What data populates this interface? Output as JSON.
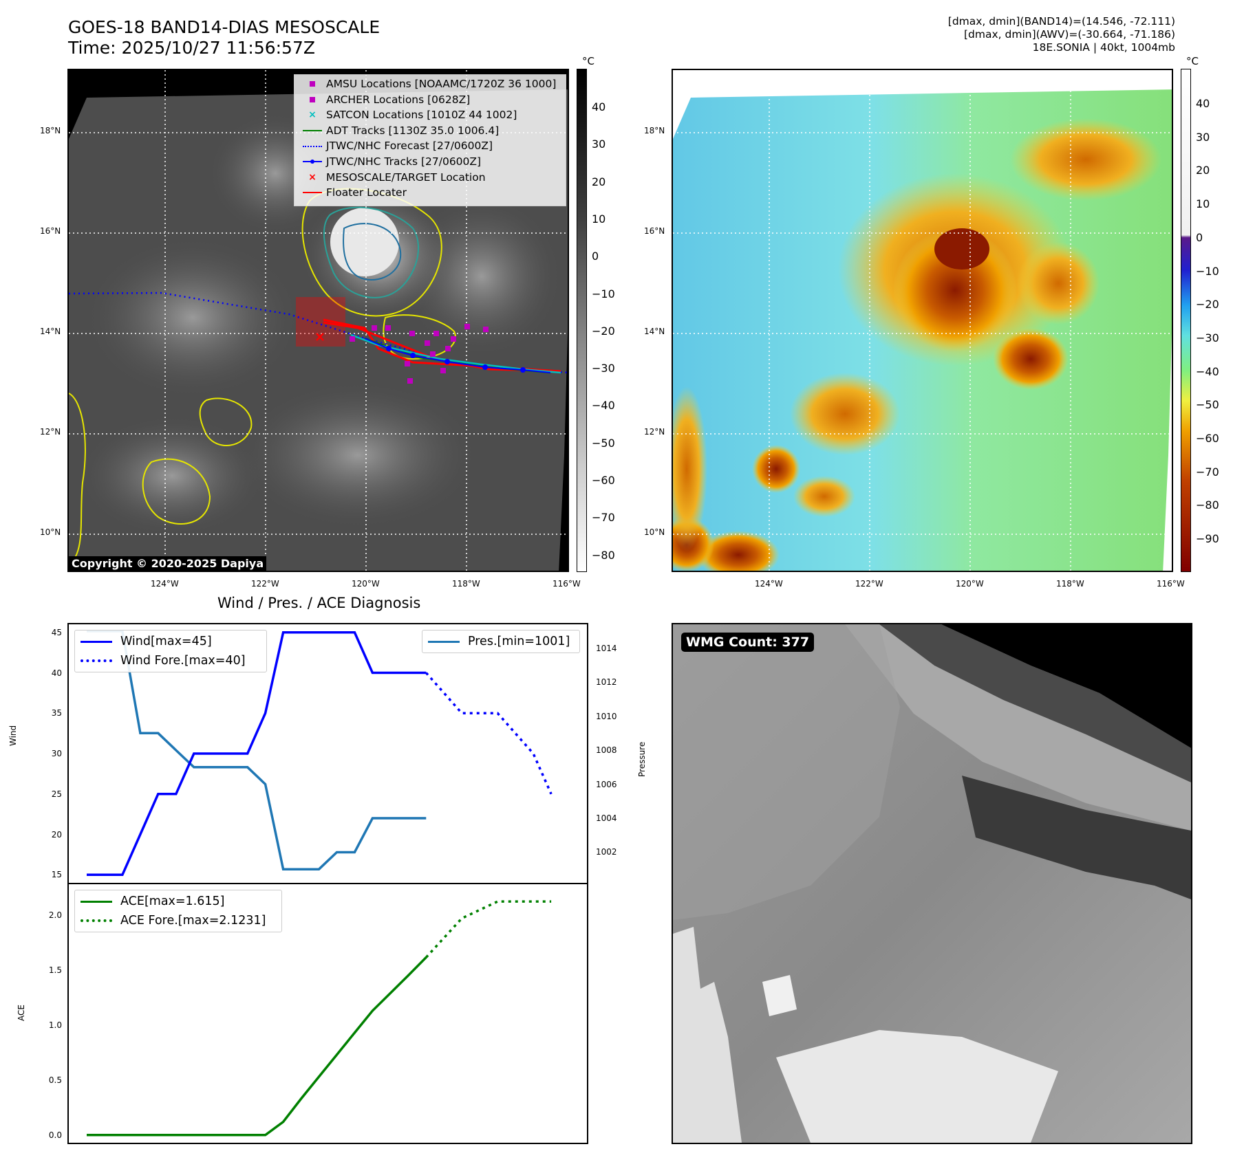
{
  "header": {
    "title_line1": "GOES-18 BAND14-DIAS MESOSCALE",
    "title_line2": "Time: 2025/10/27 11:56:57Z",
    "info_line1": "[dmax, dmin](BAND14)=(14.546, -72.111)",
    "info_line2": "[dmax, dmin](AWV)=(-30.664, -71.186)",
    "info_line3": "18E.SONIA | 40kt, 1004mb"
  },
  "map_axes": {
    "lat_labels": [
      "18°N",
      "16°N",
      "14°N",
      "12°N",
      "10°N"
    ],
    "lon_labels": [
      "124°W",
      "122°W",
      "120°W",
      "118°W",
      "116°W"
    ]
  },
  "colorbar_left": {
    "unit": "°C",
    "ticks": [
      "40",
      "30",
      "20",
      "10",
      "0",
      "−10",
      "−20",
      "−30",
      "−40",
      "−50",
      "−60",
      "−70",
      "−80"
    ]
  },
  "colorbar_right": {
    "unit": "°C",
    "ticks": [
      "40",
      "30",
      "20",
      "10",
      "0",
      "−10",
      "−20",
      "−30",
      "−40",
      "−50",
      "−60",
      "−70",
      "−80",
      "−90"
    ]
  },
  "legend": {
    "items": [
      {
        "label": "AMSU Locations [NOAAMC/1720Z 36 1000]",
        "symbol": "square",
        "color": "#bf00bf"
      },
      {
        "label": "ARCHER Locations [0628Z]",
        "symbol": "square",
        "color": "#bf00bf"
      },
      {
        "label": "SATCON Locations [1010Z 44 1002]",
        "symbol": "x",
        "color": "#00bfbf"
      },
      {
        "label": "ADT Tracks [1130Z 35.0 1006.4]",
        "symbol": "line",
        "color": "#008000"
      },
      {
        "label": "JTWC/NHC Forecast [27/0600Z]",
        "symbol": "dotted",
        "color": "#0000ff"
      },
      {
        "label": "JTWC/NHC Tracks [27/0600Z]",
        "symbol": "line-dot",
        "color": "#0000ff"
      },
      {
        "label": "MESOSCALE/TARGET Location",
        "symbol": "x",
        "color": "#ff0000"
      },
      {
        "label": "Floater Locater",
        "symbol": "line",
        "color": "#ff0000"
      }
    ]
  },
  "copyright": "Copyright © 2020-2025 Dapiya",
  "diagnosis": {
    "title": "Wind / Pres. / ACE Diagnosis",
    "wind_ylabel": "Wind",
    "pres_ylabel": "Pressure",
    "ace_ylabel": "ACE",
    "wind_legend": "Wind[max=45]",
    "wind_fore_legend": "Wind Fore.[max=40]",
    "pres_legend": "Pres.[min=1001]",
    "ace_legend": "ACE[max=1.615]",
    "ace_fore_legend": "ACE Fore.[max=2.1231]"
  },
  "wmg": {
    "label": "WMG Count: 377"
  },
  "chart_data": [
    {
      "type": "line",
      "title": "Wind / Pres. / ACE Diagnosis",
      "ylabel": "Wind",
      "ylim": [
        14,
        46
      ],
      "xlim": [
        -1,
        28
      ],
      "x": [
        0,
        1,
        2,
        3,
        4,
        5,
        6,
        7,
        8,
        9,
        10,
        11,
        12,
        13,
        14,
        15,
        16,
        17,
        18,
        19,
        20,
        21,
        22,
        23,
        24,
        25,
        26
      ],
      "series": [
        {
          "name": "Wind[max=45]",
          "color": "#0000ff",
          "style": "solid",
          "x": [
            0,
            1,
            2,
            3,
            4,
            5,
            6,
            7,
            8,
            9,
            10,
            11,
            12,
            13,
            14,
            15,
            16,
            17,
            18,
            19
          ],
          "values": [
            15,
            15,
            15,
            20,
            25,
            25,
            30,
            30,
            30,
            30,
            35,
            45,
            45,
            45,
            45,
            45,
            40,
            40,
            40,
            40
          ]
        },
        {
          "name": "Wind Fore.[max=40]",
          "color": "#0000ff",
          "style": "dotted",
          "x": [
            19,
            20,
            21,
            22,
            23,
            24,
            25,
            26
          ],
          "values": [
            40,
            37.5,
            35,
            35,
            35,
            32.5,
            30,
            25
          ]
        }
      ]
    },
    {
      "type": "line",
      "ylabel": "Pressure",
      "ylim": [
        1000.2,
        1015.4
      ],
      "series": [
        {
          "name": "Pres.[min=1001]",
          "color": "#1f77b4",
          "style": "solid",
          "x": [
            0,
            1,
            2,
            3,
            4,
            5,
            6,
            7,
            8,
            9,
            10,
            11,
            12,
            13,
            14,
            15,
            16,
            17,
            18,
            19
          ],
          "values": [
            1015,
            1015,
            1015,
            1009,
            1009,
            1008,
            1007,
            1007,
            1007,
            1007,
            1006,
            1001,
            1001,
            1001,
            1002,
            1002,
            1004,
            1004,
            1004,
            1004
          ]
        }
      ]
    },
    {
      "type": "line",
      "ylabel": "ACE",
      "ylim": [
        -0.07,
        2.28
      ],
      "series": [
        {
          "name": "ACE[max=1.615]",
          "color": "#008000",
          "style": "solid",
          "x": [
            0,
            10,
            11,
            12,
            13,
            14,
            15,
            16,
            17,
            18,
            19
          ],
          "values": [
            0.0,
            0.0,
            0.12,
            0.33,
            0.53,
            0.73,
            0.93,
            1.13,
            1.29,
            1.45,
            1.615
          ]
        },
        {
          "name": "ACE Fore.[max=2.1231]",
          "color": "#008000",
          "style": "dotted",
          "x": [
            19,
            21,
            23,
            24,
            25,
            26
          ],
          "values": [
            1.615,
            1.97,
            2.1231,
            2.1231,
            2.1231,
            2.1231
          ]
        }
      ]
    }
  ]
}
